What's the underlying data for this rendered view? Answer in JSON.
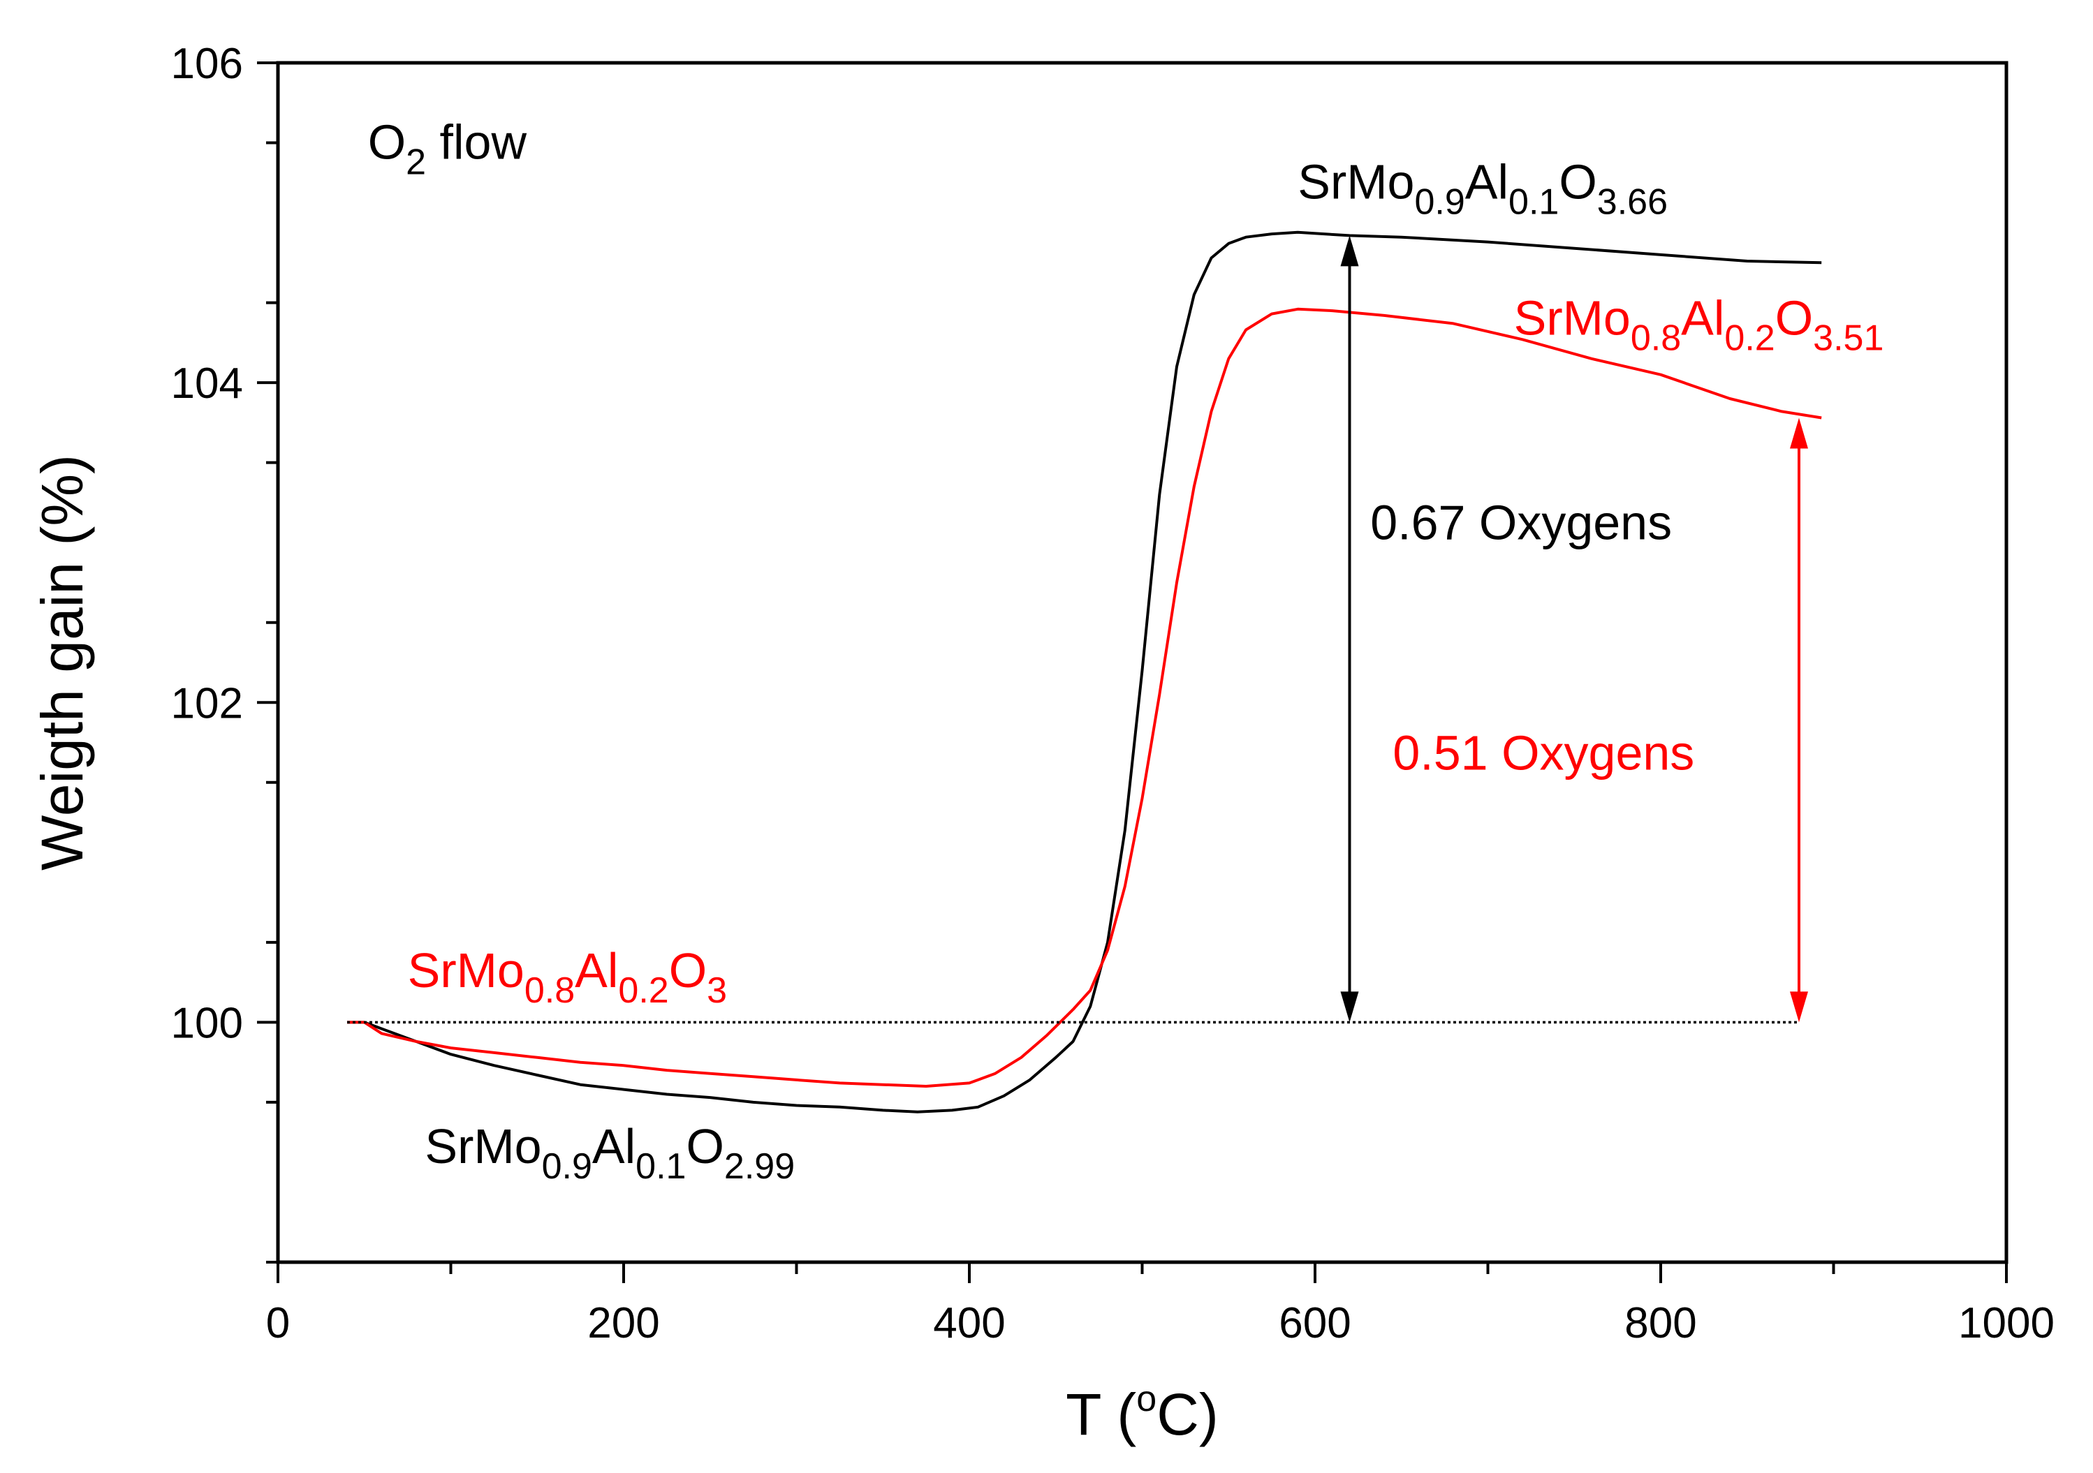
{
  "chart_data": {
    "type": "line",
    "title": "",
    "xlabel": {
      "main": "T (",
      "sup": "o",
      "unit": "C)"
    },
    "ylabel": "Weigth gain (%)",
    "xlim": [
      0,
      1000
    ],
    "ylim": [
      98.5,
      106
    ],
    "x_ticks": [
      0,
      200,
      400,
      600,
      800,
      1000
    ],
    "y_ticks": [
      100,
      102,
      104,
      106
    ],
    "x_minor_step": 100,
    "y_minor_step": 1,
    "grid": false,
    "colors": {
      "black": "#000000",
      "red": "#ff0000"
    },
    "series": [
      {
        "color": "#000000",
        "x": [
          40,
          50,
          60,
          80,
          100,
          125,
          150,
          175,
          200,
          225,
          250,
          275,
          300,
          325,
          350,
          370,
          390,
          405,
          420,
          435,
          450,
          460,
          470,
          480,
          490,
          500,
          510,
          520,
          530,
          540,
          550,
          560,
          575,
          590,
          620,
          650,
          700,
          750,
          800,
          850,
          893
        ],
        "y": [
          100.0,
          100.0,
          99.96,
          99.88,
          99.8,
          99.73,
          99.67,
          99.61,
          99.58,
          99.55,
          99.53,
          99.5,
          99.48,
          99.47,
          99.45,
          99.44,
          99.45,
          99.47,
          99.54,
          99.64,
          99.78,
          99.88,
          100.1,
          100.5,
          101.2,
          102.2,
          103.3,
          104.1,
          104.55,
          104.78,
          104.87,
          104.91,
          104.93,
          104.94,
          104.92,
          104.91,
          104.88,
          104.84,
          104.8,
          104.76,
          104.75
        ]
      },
      {
        "color": "#ff0000",
        "x": [
          40,
          50,
          60,
          80,
          100,
          125,
          150,
          175,
          200,
          225,
          250,
          275,
          300,
          325,
          350,
          375,
          400,
          415,
          430,
          445,
          460,
          470,
          480,
          490,
          500,
          510,
          520,
          530,
          540,
          550,
          560,
          575,
          590,
          610,
          640,
          680,
          720,
          760,
          800,
          840,
          870,
          893
        ],
        "y": [
          100.0,
          100.0,
          99.93,
          99.88,
          99.84,
          99.81,
          99.78,
          99.75,
          99.73,
          99.7,
          99.68,
          99.66,
          99.64,
          99.62,
          99.61,
          99.6,
          99.62,
          99.68,
          99.78,
          99.92,
          100.08,
          100.2,
          100.45,
          100.85,
          101.4,
          102.05,
          102.75,
          103.35,
          103.82,
          104.15,
          104.33,
          104.43,
          104.46,
          104.45,
          104.42,
          104.37,
          104.27,
          104.15,
          104.05,
          103.9,
          103.82,
          103.78
        ]
      }
    ],
    "baseline": {
      "y": 100,
      "x_start": 40,
      "x_end": 880
    },
    "arrows": [
      {
        "x": 620,
        "y_from": 100,
        "y_to": 104.92,
        "color": "#000000"
      },
      {
        "x": 880,
        "y_from": 100,
        "y_to": 103.78,
        "color": "#ff0000"
      }
    ],
    "annotations": [
      {
        "id": "o2-flow",
        "color": "#000000",
        "x": 52,
        "y": 105.4,
        "parts": [
          {
            "t": "O"
          },
          {
            "t": "2",
            "sub": true
          },
          {
            "t": " flow"
          }
        ]
      },
      {
        "id": "label-black-high",
        "color": "#000000",
        "x": 590,
        "y": 105.15,
        "parts": [
          {
            "t": "SrMo"
          },
          {
            "t": "0.9",
            "sub": true
          },
          {
            "t": "Al"
          },
          {
            "t": "0.1",
            "sub": true
          },
          {
            "t": "O"
          },
          {
            "t": "3.66",
            "sub": true
          }
        ]
      },
      {
        "id": "label-red-high",
        "color": "#ff0000",
        "x": 715,
        "y": 104.3,
        "parts": [
          {
            "t": "SrMo"
          },
          {
            "t": "0.8",
            "sub": true
          },
          {
            "t": "Al"
          },
          {
            "t": "0.2",
            "sub": true
          },
          {
            "t": "O"
          },
          {
            "t": "3.51",
            "sub": true
          }
        ]
      },
      {
        "id": "label-black-oxygens",
        "color": "#000000",
        "x": 632,
        "y": 103.02,
        "parts": [
          {
            "t": "0.67 Oxygens"
          }
        ]
      },
      {
        "id": "label-red-oxygens",
        "color": "#ff0000",
        "x": 645,
        "y": 101.58,
        "parts": [
          {
            "t": "0.51 Oxygens"
          }
        ]
      },
      {
        "id": "label-red-low",
        "color": "#ff0000",
        "x": 75,
        "y": 100.22,
        "parts": [
          {
            "t": "SrMo"
          },
          {
            "t": "0.8",
            "sub": true
          },
          {
            "t": "Al"
          },
          {
            "t": "0.2",
            "sub": true
          },
          {
            "t": "O"
          },
          {
            "t": "3",
            "sub": true
          }
        ]
      },
      {
        "id": "label-black-low",
        "color": "#000000",
        "x": 85,
        "y": 99.12,
        "parts": [
          {
            "t": "SrMo"
          },
          {
            "t": "0.9",
            "sub": true
          },
          {
            "t": "Al"
          },
          {
            "t": "0.1",
            "sub": true
          },
          {
            "t": "O"
          },
          {
            "t": "2.99",
            "sub": true
          }
        ]
      }
    ]
  }
}
